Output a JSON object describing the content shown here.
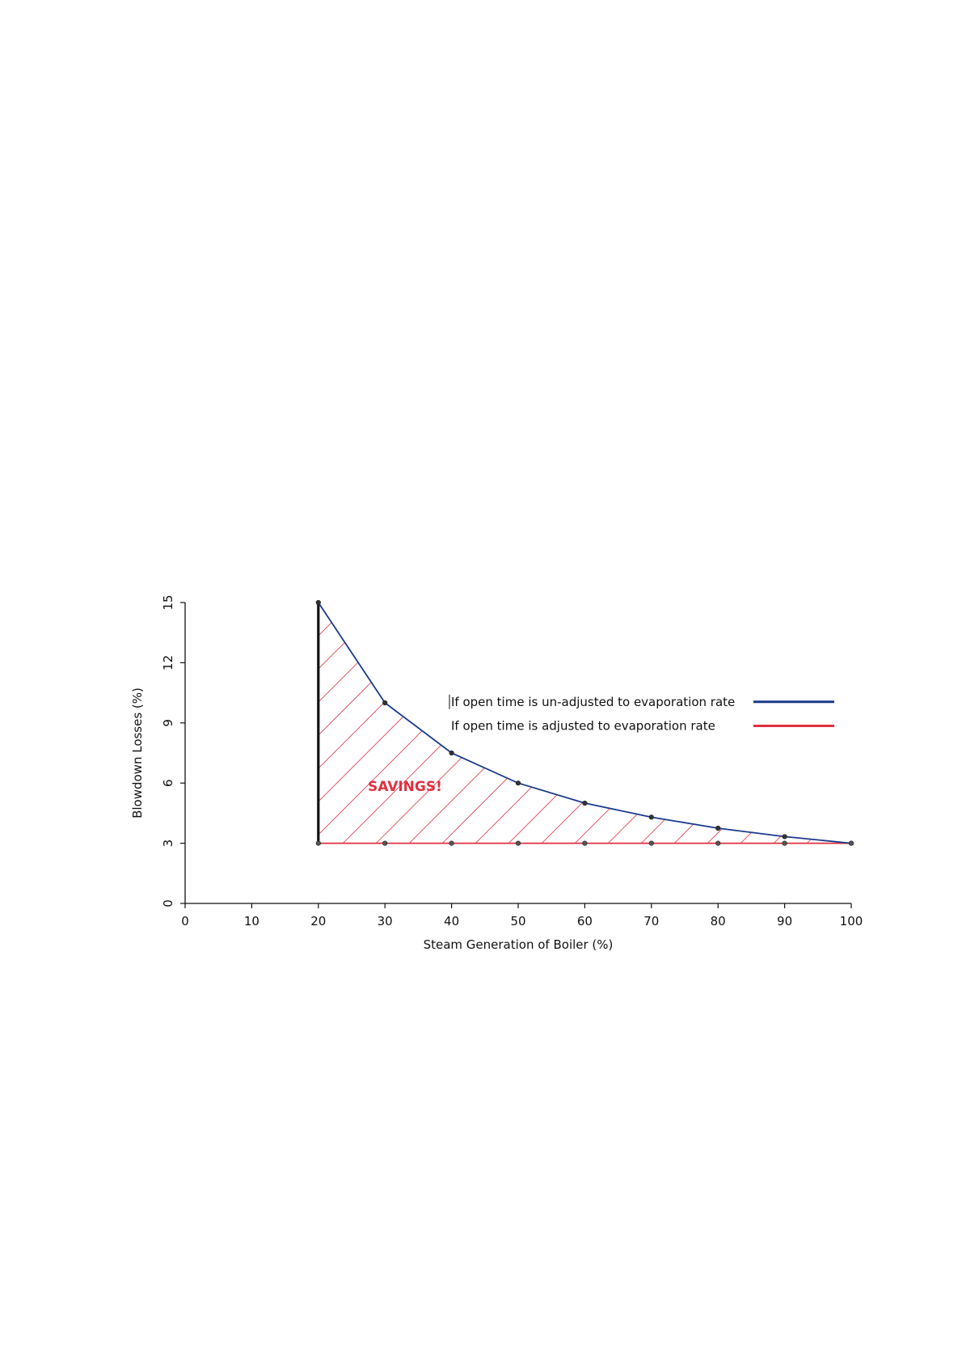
{
  "chart_data": {
    "type": "line",
    "title": "",
    "xlabel": "Steam Generation of Boiler (%)",
    "ylabel": "Blowdown Losses (%)",
    "xlim": [
      0,
      100
    ],
    "ylim": [
      0,
      15
    ],
    "x_ticks": [
      "0",
      "10",
      "20",
      "30",
      "40",
      "50",
      "60",
      "70",
      "80",
      "90",
      "100"
    ],
    "y_ticks": [
      "0",
      "3",
      "6",
      "9",
      "12",
      "15"
    ],
    "grid": false,
    "legend_position": "right",
    "series": [
      {
        "name": "If open time is un-adjusted to evaporation rate",
        "color": "#1a3a8c",
        "x": [
          20,
          30,
          40,
          50,
          60,
          70,
          80,
          90,
          100
        ],
        "y": [
          15,
          10,
          7.5,
          6,
          5,
          4.3,
          3.75,
          3.33,
          3
        ]
      },
      {
        "name": "If open time is adjusted to evaporation rate",
        "color": "#e03040",
        "x": [
          20,
          30,
          40,
          50,
          60,
          70,
          80,
          90,
          100
        ],
        "y": [
          3,
          3,
          3,
          3,
          3,
          3,
          3,
          3,
          3
        ]
      }
    ],
    "annotation": "SAVINGS!",
    "annotation_color": "#e03040",
    "hatch_color": "#e03040"
  }
}
